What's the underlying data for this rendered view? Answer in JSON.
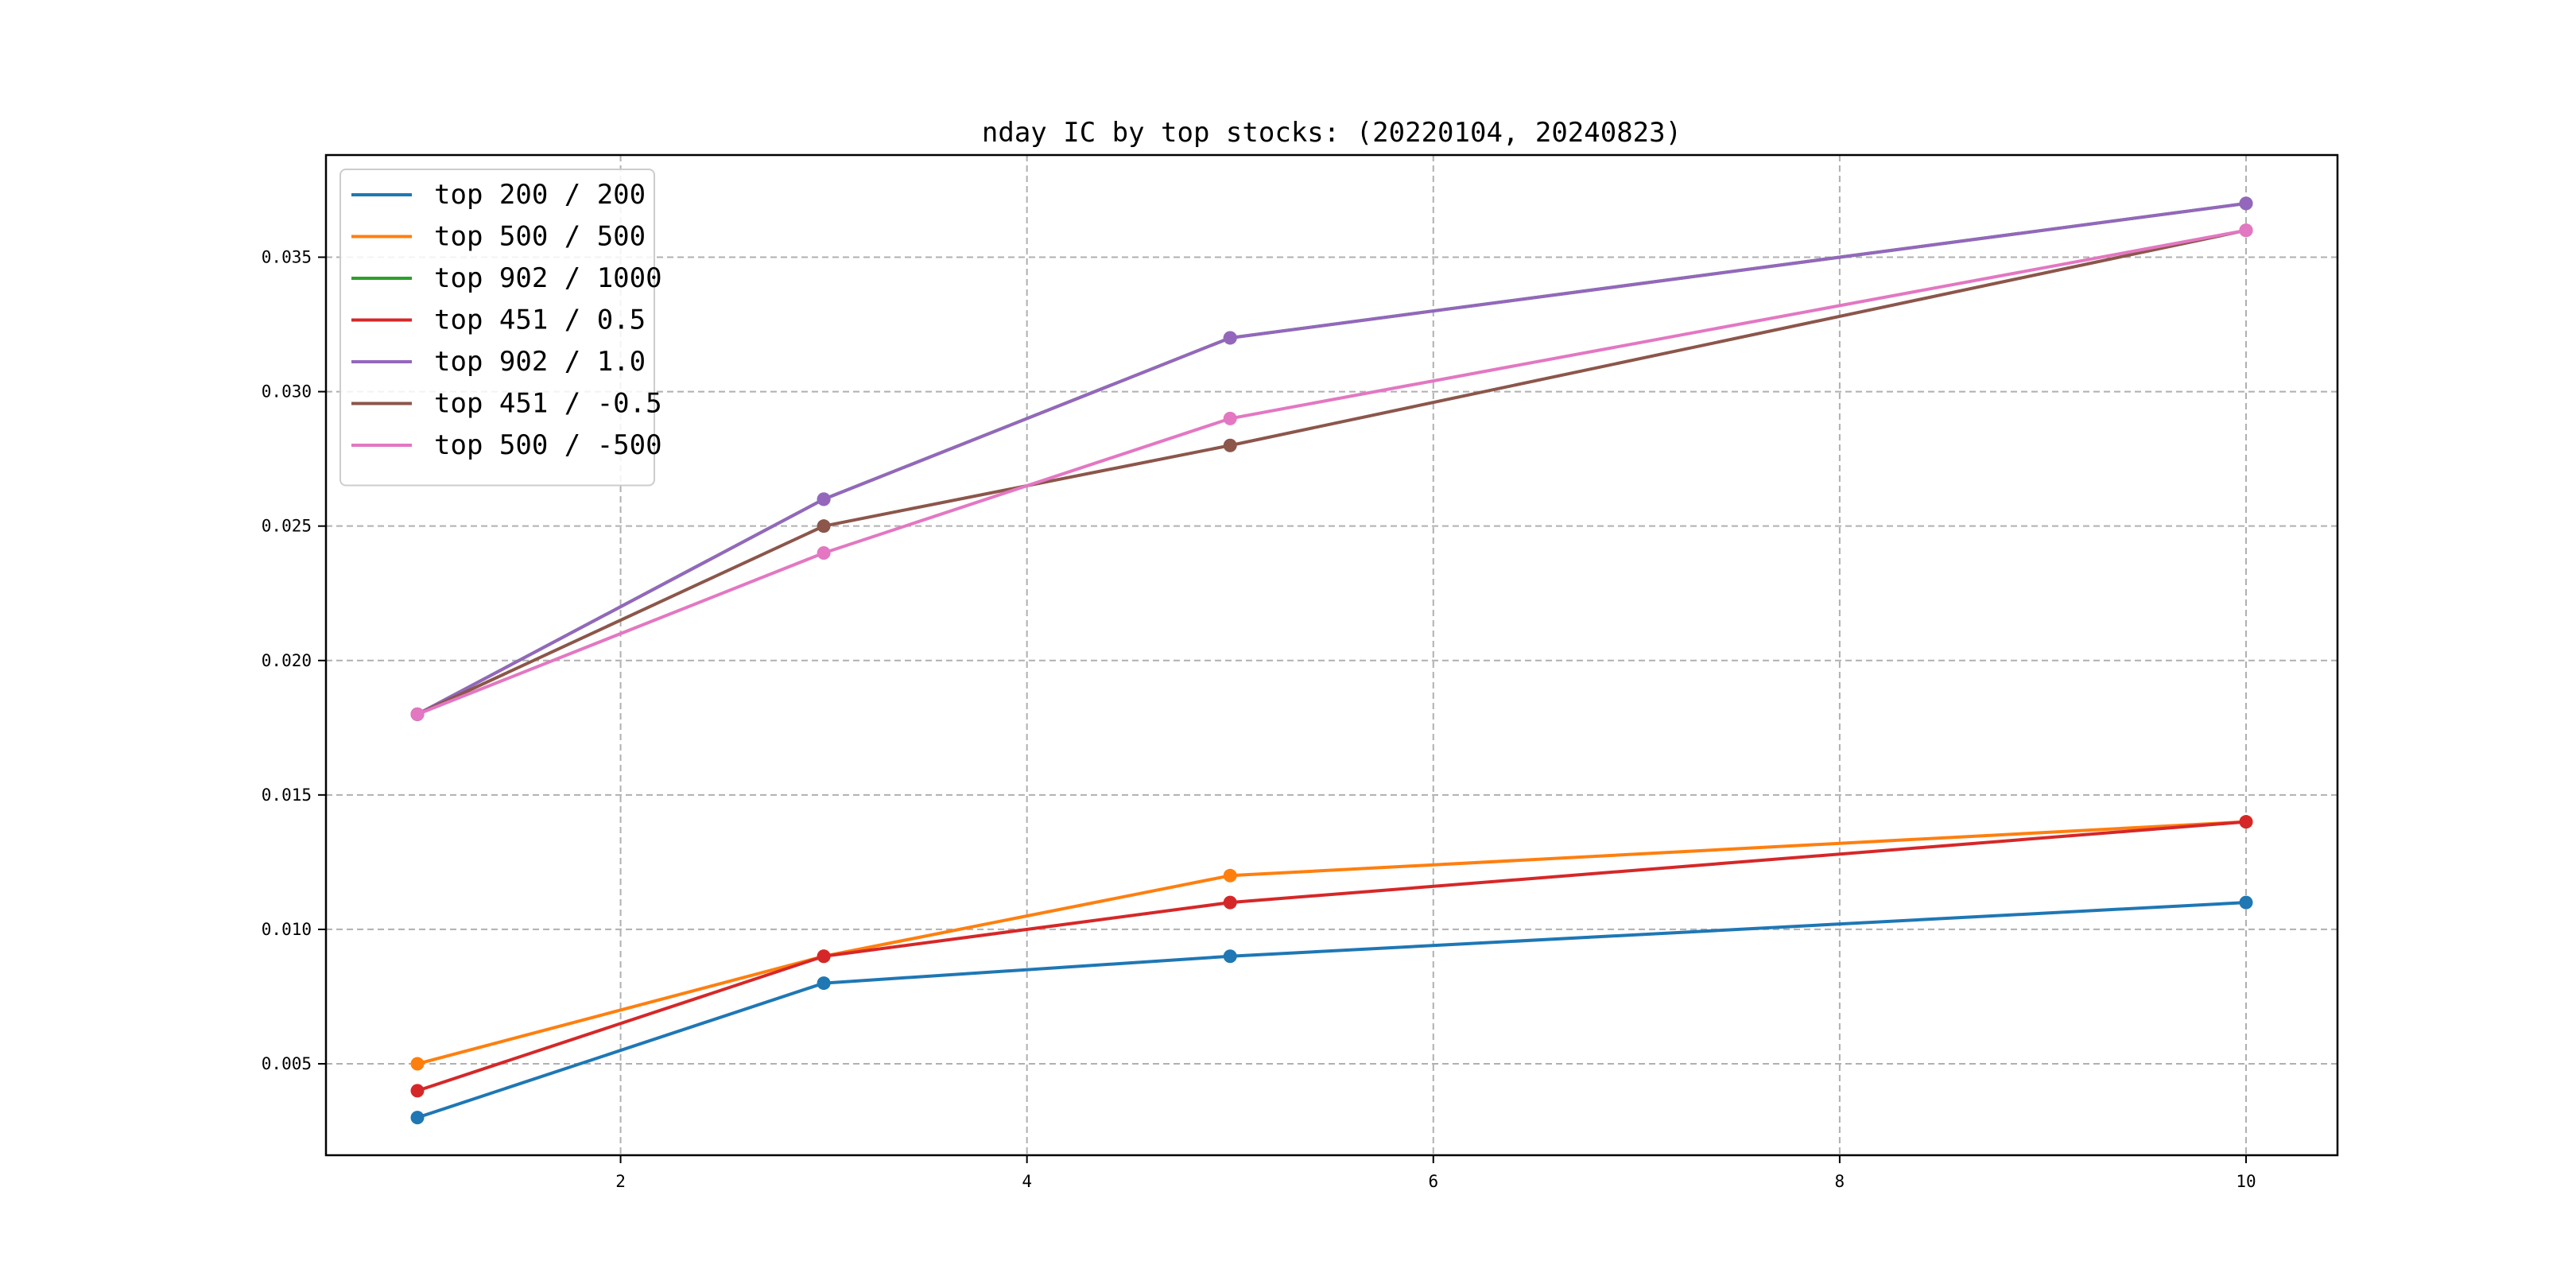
{
  "chart_data": {
    "type": "line",
    "title": "nday IC by top stocks: (20220104, 20240823)",
    "xlabel": "",
    "ylabel": "",
    "x": [
      1,
      3,
      5,
      10
    ],
    "xlim": [
      0.55,
      10.45
    ],
    "ylim": [
      0.0016,
      0.0388
    ],
    "xticks": [
      2,
      4,
      6,
      8,
      10
    ],
    "xtick_labels": [
      "2",
      "4",
      "6",
      "8",
      "10"
    ],
    "yticks": [
      0.005,
      0.01,
      0.015,
      0.02,
      0.025,
      0.03,
      0.035
    ],
    "ytick_labels": [
      "0.005",
      "0.010",
      "0.015",
      "0.020",
      "0.025",
      "0.030",
      "0.035"
    ],
    "grid": true,
    "legend_position": "top-left",
    "marker": "circle",
    "series": [
      {
        "name": "top 200 / 200",
        "color": "#1f77b4",
        "values": [
          0.003,
          0.008,
          0.009,
          0.011
        ]
      },
      {
        "name": "top 500 / 500",
        "color": "#ff7f0e",
        "values": [
          0.005,
          0.009,
          0.012,
          0.014
        ]
      },
      {
        "name": "top 902 / 1000",
        "color": "#2ca02c",
        "values": [
          0.018,
          0.026,
          0.032,
          0.037
        ]
      },
      {
        "name": "top 451 / 0.5",
        "color": "#d62728",
        "values": [
          0.004,
          0.009,
          0.011,
          0.014
        ]
      },
      {
        "name": "top 902 / 1.0",
        "color": "#9467bd",
        "values": [
          0.018,
          0.026,
          0.032,
          0.037
        ]
      },
      {
        "name": "top 451 / -0.5",
        "color": "#8c564b",
        "values": [
          0.018,
          0.025,
          0.028,
          0.036
        ]
      },
      {
        "name": "top 500 / -500",
        "color": "#e377c2",
        "values": [
          0.018,
          0.024,
          0.029,
          0.036
        ]
      }
    ]
  }
}
